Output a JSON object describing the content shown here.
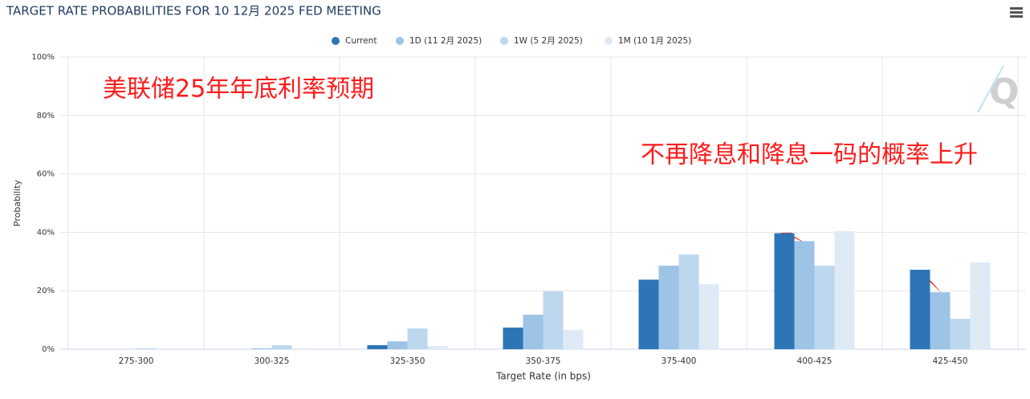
{
  "chart_data": {
    "type": "bar",
    "title": "TARGET RATE PROBABILITIES FOR 10 12月 2025 FED MEETING",
    "x_label": "Target Rate (in bps)",
    "y_label": "Probability",
    "annotations": [
      "美联储25年年底利率预期",
      "不再降息和降息一码的概率上升"
    ],
    "categories": [
      "275-300",
      "300-325",
      "325-350",
      "350-375",
      "375-400",
      "400-425",
      "425-450"
    ],
    "series": [
      {
        "name": "Current",
        "color": "#2e75b6",
        "values": [
          0,
          0,
          1.4,
          7.4,
          23.8,
          39.7,
          27.2
        ]
      },
      {
        "name": "1D (11 2月 2025)",
        "color": "#9dc3e6",
        "values": [
          0,
          0.3,
          2.7,
          11.8,
          28.6,
          37.0,
          19.5
        ]
      },
      {
        "name": "1W (5 2月 2025)",
        "color": "#bdd7ee",
        "values": [
          0.3,
          1.4,
          7.1,
          19.8,
          32.4,
          28.6,
          10.4
        ]
      },
      {
        "name": "1M (10 1月 2025)",
        "color": "#deebf7",
        "values": [
          0,
          0,
          1.1,
          6.6,
          22.3,
          40.4,
          29.7
        ]
      }
    ],
    "ylim": [
      0,
      100
    ],
    "yticks": [
      {
        "value": 0,
        "label": "0%"
      },
      {
        "value": 20,
        "label": "20%"
      },
      {
        "value": 40,
        "label": "40%"
      },
      {
        "value": 60,
        "label": "60%"
      },
      {
        "value": 80,
        "label": "80%"
      },
      {
        "value": 100,
        "label": "100%"
      }
    ],
    "grid": true
  }
}
